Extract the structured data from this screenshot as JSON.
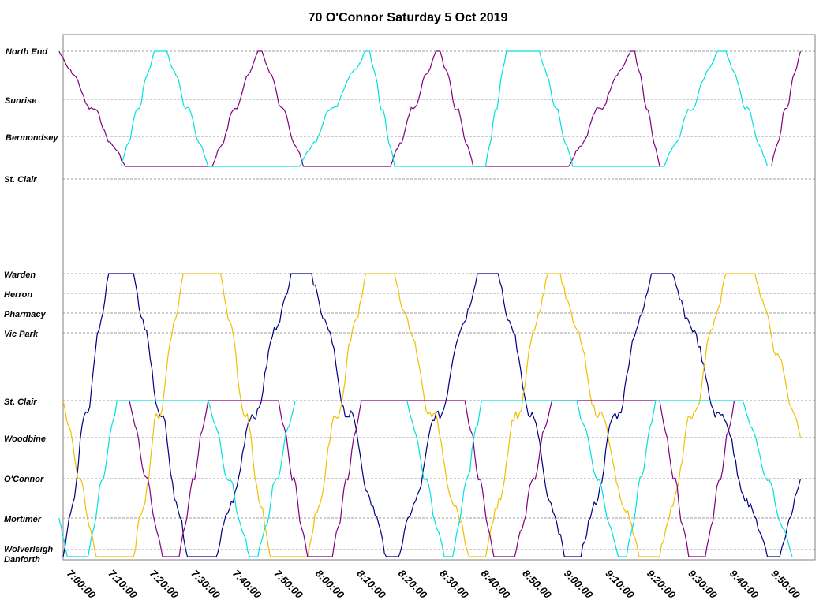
{
  "chart_data": {
    "type": "line",
    "title": "70 O'Connor  Saturday  5 Oct 2019",
    "xlabel": "",
    "ylabel": "",
    "x_range": [
      "7:00:00",
      "9:58:00"
    ],
    "x_ticks": [
      "7:00:00",
      "7:10:00",
      "7:20:00",
      "7:30:00",
      "7:40:00",
      "7:50:00",
      "8:00:00",
      "8:10:00",
      "8:20:00",
      "8:30:00",
      "8:40:00",
      "8:50:00",
      "9:00:00",
      "9:10:00",
      "9:20:00",
      "9:30:00",
      "9:40:00",
      "9:50:00"
    ],
    "grid": true,
    "legend": "none",
    "stops": {
      "north_branch": [
        "North End",
        "Sunrise",
        "Bermondsey",
        "St. Clair"
      ],
      "south_branch": [
        "Warden",
        "Herron",
        "Pharmacy",
        "Vic Park",
        "St. Clair",
        "Woodbine",
        "O'Connor",
        "Mortimer",
        "Wolverleigh",
        "Danforth"
      ]
    },
    "series": [
      {
        "color": "#800080",
        "branch": "north",
        "trips": [
          {
            "from": "North End",
            "to": "St. Clair (short)",
            "depart": "6:59",
            "arrive": "7:15"
          },
          {
            "from": "St. Clair (short)",
            "to": "North End",
            "depart": "7:36",
            "arrive": "7:47"
          },
          {
            "from": "North End",
            "to": "St. Clair (short)",
            "depart": "7:48",
            "arrive": "7:58"
          },
          {
            "from": "St. Clair (short)",
            "to": "North End",
            "depart": "8:19",
            "arrive": "8:30"
          },
          {
            "from": "North End",
            "to": "St. Clair (short)",
            "depart": "8:31",
            "arrive": "8:39"
          },
          {
            "from": "St. Clair (short)",
            "to": "North End",
            "depart": "9:02",
            "arrive": "9:17"
          },
          {
            "from": "North End",
            "to": "St. Clair (short)",
            "depart": "9:18",
            "arrive": "9:24"
          },
          {
            "from": "St. Clair (short)",
            "to": "North End",
            "depart": "9:51",
            "arrive": "9:58"
          }
        ]
      },
      {
        "color": "#00e0e0",
        "branch": "north",
        "trips": [
          {
            "from": "St. Clair (short)",
            "to": "North End",
            "depart": "7:14",
            "arrive": "7:22"
          },
          {
            "from": "North End",
            "to": "St. Clair (short)",
            "depart": "7:25",
            "arrive": "7:35"
          },
          {
            "from": "St. Clair (short)",
            "to": "North End",
            "depart": "7:57",
            "arrive": "8:13"
          },
          {
            "from": "North End",
            "to": "St. Clair (short)",
            "depart": "8:14",
            "arrive": "8:20"
          },
          {
            "from": "St. Clair (short)",
            "to": "North End",
            "depart": "8:42",
            "arrive": "8:47"
          },
          {
            "from": "North End",
            "to": "St. Clair (short)",
            "depart": "8:55",
            "arrive": "9:03"
          },
          {
            "from": "St. Clair (short)",
            "to": "North End",
            "depart": "9:25",
            "arrive": "9:38"
          },
          {
            "from": "North End",
            "to": "St. Clair (short)",
            "depart": "9:40",
            "arrive": "9:50"
          }
        ]
      },
      {
        "color": "#000080",
        "branch": "south",
        "trips": [
          {
            "from": "Danforth",
            "to": "Warden",
            "depart": "7:00",
            "arrive": "7:11"
          },
          {
            "from": "Warden",
            "to": "Danforth",
            "depart": "7:17",
            "arrive": "7:30"
          },
          {
            "from": "Danforth",
            "to": "Warden",
            "depart": "7:37",
            "arrive": "7:55"
          },
          {
            "from": "Warden",
            "to": "Danforth",
            "depart": "8:00",
            "arrive": "8:18"
          },
          {
            "from": "Danforth",
            "to": "Warden",
            "depart": "8:21",
            "arrive": "8:40"
          },
          {
            "from": "Warden",
            "to": "Danforth",
            "depart": "8:45",
            "arrive": "9:01"
          },
          {
            "from": "Danforth",
            "to": "Warden",
            "depart": "9:05",
            "arrive": "9:22"
          },
          {
            "from": "Warden",
            "to": "Danforth",
            "depart": "9:27",
            "arrive": "9:50"
          },
          {
            "from": "Danforth",
            "to": "O'Connor",
            "depart": "9:53",
            "arrive": "9:58"
          }
        ]
      },
      {
        "color": "#f0c000",
        "branch": "south",
        "trips": [
          {
            "from": "St. Clair",
            "to": "Danforth",
            "depart": "7:00",
            "arrive": "7:08"
          },
          {
            "from": "Danforth",
            "to": "Warden",
            "depart": "7:17",
            "arrive": "7:29"
          },
          {
            "from": "Warden",
            "to": "Danforth",
            "depart": "7:38",
            "arrive": "7:50"
          },
          {
            "from": "Danforth",
            "to": "Warden",
            "depart": "7:59",
            "arrive": "8:13"
          },
          {
            "from": "Warden",
            "to": "Danforth",
            "depart": "8:20",
            "arrive": "8:38"
          },
          {
            "from": "Danforth",
            "to": "Warden",
            "depart": "8:42",
            "arrive": "8:57"
          },
          {
            "from": "Warden",
            "to": "Danforth",
            "depart": "9:00",
            "arrive": "9:19"
          },
          {
            "from": "Danforth",
            "to": "Warden",
            "depart": "9:24",
            "arrive": "9:40"
          },
          {
            "from": "Warden",
            "to": "Woodbine",
            "depart": "9:47",
            "arrive": "9:58"
          }
        ]
      },
      {
        "color": "#800080",
        "branch": "south",
        "trips": [
          {
            "from": "St. Clair",
            "to": "Danforth",
            "depart": "7:16",
            "arrive": "7:24"
          },
          {
            "from": "Danforth",
            "to": "St. Clair",
            "depart": "7:28",
            "arrive": "7:35"
          },
          {
            "from": "St. Clair",
            "to": "Danforth",
            "depart": "7:52",
            "arrive": "7:59"
          },
          {
            "from": "Danforth",
            "to": "St. Clair",
            "depart": "8:05",
            "arrive": "8:12"
          },
          {
            "from": "St. Clair",
            "to": "Danforth",
            "depart": "8:37",
            "arrive": "8:44"
          },
          {
            "from": "Danforth",
            "to": "St. Clair",
            "depart": "8:49",
            "arrive": "8:58"
          },
          {
            "from": "St. Clair",
            "to": "Danforth",
            "depart": "9:24",
            "arrive": "9:31"
          },
          {
            "from": "Danforth",
            "to": "St. Clair",
            "depart": "9:35",
            "arrive": "9:42"
          }
        ]
      },
      {
        "color": "#00e0e0",
        "branch": "south",
        "trips": [
          {
            "from": "Mortimer",
            "to": "Danforth",
            "depart": "6:59",
            "arrive": "7:01"
          },
          {
            "from": "Danforth",
            "to": "St. Clair",
            "depart": "7:06",
            "arrive": "7:13"
          },
          {
            "from": "St. Clair",
            "to": "Danforth",
            "depart": "7:35",
            "arrive": "7:45"
          },
          {
            "from": "Danforth",
            "to": "St. Clair",
            "depart": "7:47",
            "arrive": "7:56"
          },
          {
            "from": "St. Clair",
            "to": "Danforth",
            "depart": "8:23",
            "arrive": "8:32"
          },
          {
            "from": "Danforth",
            "to": "St. Clair",
            "depart": "8:34",
            "arrive": "8:41"
          },
          {
            "from": "St. Clair",
            "to": "Danforth",
            "depart": "9:04",
            "arrive": "9:14"
          },
          {
            "from": "Danforth",
            "to": "St. Clair",
            "depart": "9:16",
            "arrive": "9:23"
          },
          {
            "from": "St. Clair",
            "to": "Danforth",
            "depart": "9:44",
            "arrive": "9:56"
          }
        ]
      }
    ]
  }
}
